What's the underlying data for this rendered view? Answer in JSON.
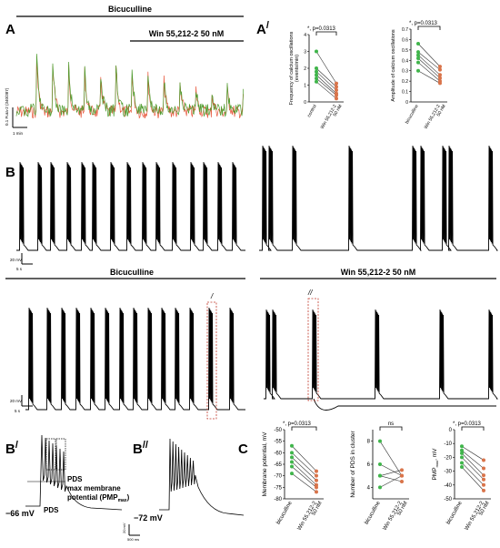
{
  "panels": {
    "A": {
      "label": "A",
      "condition_title": "Bicuculline",
      "treatment_label": "Win 55,212-2 50 nM",
      "ylabel": "0.1 Fura-2 (340/387)",
      "scalebar_label": "1 min"
    },
    "A_prime": {
      "label": "A",
      "mark": "/"
    },
    "B": {
      "label": "B",
      "scalebar_y": "20 mV",
      "scalebar_x": "5 s"
    },
    "B_lower": {
      "left_title": "Bicuculline",
      "right_title": "Win 55,212-2 50 nM",
      "scalebar_y": "20 mV",
      "scalebar_x": "5 s",
      "marker_1": "/",
      "marker_2": "//"
    },
    "B_prime": {
      "label": "B",
      "mark": "/",
      "holding_potential": "−66 mV",
      "pds_label_1": "PDS",
      "pds_label_2": "PDS",
      "pmp_label_line1": "max membrane",
      "pmp_label_line2": "potential (PMP",
      "pmp_label_sub": "max",
      "pmp_label_end": ")"
    },
    "B_double_prime": {
      "label": "B",
      "mark": "//",
      "holding_potential": "−72 mV",
      "scalebar_y": "20 mV",
      "scalebar_x": "500 ms"
    },
    "C": {
      "label": "C"
    }
  },
  "chart_data": [
    {
      "id": "freq",
      "type": "scatter",
      "ylabel_line1": "Frequency of calcium oscillations",
      "ylabel_line2": "(events/min)",
      "categories": [
        "control",
        "Win 55,212-2 50 nM"
      ],
      "category_labels": [
        [
          "control"
        ],
        [
          "Win 55,212-2",
          "50 nM"
        ]
      ],
      "significance": "*, p=0.0313",
      "ylim": [
        0,
        4
      ],
      "yticks": [
        0,
        1,
        2,
        3,
        4
      ],
      "pairs": [
        [
          3.0,
          1.1
        ],
        [
          2.0,
          0.9
        ],
        [
          1.8,
          0.7
        ],
        [
          1.6,
          0.5
        ],
        [
          1.4,
          0.4
        ],
        [
          1.2,
          0.2
        ]
      ]
    },
    {
      "id": "amp",
      "type": "scatter",
      "ylabel_line1": "Amplitude of calcium oscillations",
      "ylabel_line2": "",
      "categories": [
        "bicuculline",
        "Win 55,212-2 50 nM"
      ],
      "category_labels": [
        [
          "bicuculline"
        ],
        [
          "Win 55,212-2",
          "50 nM"
        ]
      ],
      "significance": "*, p=0.0313",
      "ylim": [
        0,
        0.7
      ],
      "yticks": [
        0.0,
        0.1,
        0.2,
        0.3,
        0.4,
        0.5,
        0.6,
        0.7
      ],
      "pairs": [
        [
          0.56,
          0.34
        ],
        [
          0.48,
          0.31
        ],
        [
          0.45,
          0.26
        ],
        [
          0.42,
          0.23
        ],
        [
          0.38,
          0.2
        ],
        [
          0.3,
          0.18
        ]
      ]
    },
    {
      "id": "mp",
      "type": "scatter",
      "ylabel_line1": "Membrane potential, mV",
      "ylabel_line2": "",
      "categories": [
        "bicuculline",
        "Win 55,212-2 50 nM"
      ],
      "category_labels": [
        [
          "bicuculline"
        ],
        [
          "Win 55,212-2",
          "50 nM"
        ]
      ],
      "significance": "*, p=0.0313",
      "ylim": [
        -80,
        -50
      ],
      "yticks": [
        -80,
        -75,
        -70,
        -65,
        -60,
        -55,
        -50
      ],
      "pairs": [
        [
          -57,
          -68
        ],
        [
          -60,
          -70
        ],
        [
          -62,
          -72
        ],
        [
          -64,
          -74
        ],
        [
          -66,
          -75
        ],
        [
          -69,
          -77
        ]
      ]
    },
    {
      "id": "pds",
      "type": "scatter",
      "ylabel_line1": "Number of PDS in cluster",
      "ylabel_line2": "",
      "categories": [
        "bicuculline",
        "Win 55,212-2 50 nM"
      ],
      "category_labels": [
        [
          "bicuculline"
        ],
        [
          "Win 55,212-2",
          "50 nM"
        ]
      ],
      "significance": "ns",
      "ylim": [
        3,
        9
      ],
      "yticks": [
        4,
        6,
        8
      ],
      "pairs": [
        [
          8,
          5
        ],
        [
          6,
          5
        ],
        [
          5,
          5.5
        ],
        [
          5,
          4.5
        ],
        [
          4,
          5
        ]
      ]
    },
    {
      "id": "pmp",
      "type": "scatter",
      "ylabel_line1": "PMP",
      "ylabel_sub": "max",
      "ylabel_line2": ", mV",
      "categories": [
        "bicuculline",
        "Win 55,212-2 50 nM"
      ],
      "category_labels": [
        [
          "bicuculline"
        ],
        [
          "Win 55,212-2",
          "50 nM"
        ]
      ],
      "significance": "*, p=0.0313",
      "ylim": [
        -50,
        0
      ],
      "yticks": [
        -50,
        -40,
        -30,
        -20,
        -10,
        0
      ],
      "pairs": [
        [
          -12,
          -22
        ],
        [
          -15,
          -28
        ],
        [
          -17,
          -33
        ],
        [
          -20,
          -36
        ],
        [
          -24,
          -40
        ],
        [
          -27,
          -44
        ]
      ]
    }
  ],
  "colors": {
    "green": "#3fb54a",
    "orange": "#d9744a",
    "red_trace": "#e8553a",
    "green_trace": "#4c9b2c",
    "dash_box": "#c0392b"
  }
}
